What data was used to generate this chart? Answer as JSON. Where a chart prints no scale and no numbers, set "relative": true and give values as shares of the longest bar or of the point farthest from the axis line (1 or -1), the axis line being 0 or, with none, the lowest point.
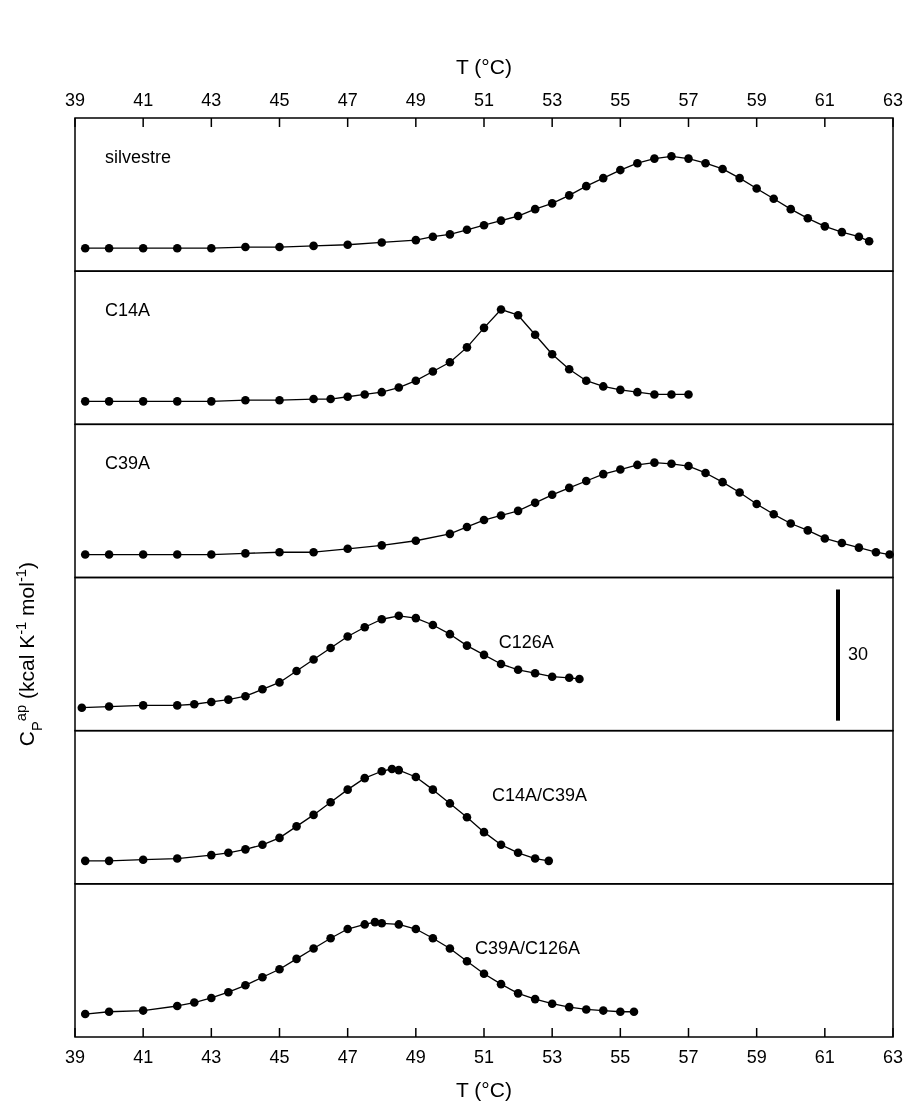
{
  "chart_data": [
    {
      "type": "line",
      "relative": true,
      "marker": "circle",
      "xlabel": "T (°C)",
      "xlim": [
        39,
        63
      ],
      "xticks": [
        39,
        41,
        43,
        45,
        47,
        49,
        51,
        53,
        55,
        57,
        59,
        61,
        63
      ],
      "series": [
        {
          "name": "silvestre",
          "color": "#000000",
          "x": [
            39.3,
            40,
            41,
            42,
            43,
            44,
            45,
            46,
            47,
            48,
            49,
            49.5,
            50,
            50.5,
            51,
            51.5,
            52,
            52.5,
            53,
            53.5,
            54,
            54.5,
            55,
            55.5,
            56,
            56.5,
            57,
            57.5,
            58,
            58.5,
            59,
            59.5,
            60,
            60.5,
            61,
            61.5,
            62,
            62.3
          ],
          "values": [
            0.2,
            0.2,
            0.2,
            0.2,
            0.2,
            0.21,
            0.21,
            0.22,
            0.23,
            0.25,
            0.27,
            0.3,
            0.32,
            0.36,
            0.4,
            0.44,
            0.48,
            0.54,
            0.59,
            0.66,
            0.74,
            0.81,
            0.88,
            0.94,
            0.98,
            1,
            0.98,
            0.94,
            0.89,
            0.81,
            0.72,
            0.63,
            0.54,
            0.46,
            0.39,
            0.34,
            0.3,
            0.26
          ]
        }
      ]
    },
    {
      "type": "line",
      "relative": true,
      "marker": "circle",
      "xlim": [
        39,
        63
      ],
      "series": [
        {
          "name": "C14A",
          "color": "#000000",
          "x": [
            39.3,
            40,
            41,
            42,
            43,
            44,
            45,
            46,
            46.5,
            47,
            47.5,
            48,
            48.5,
            49,
            49.5,
            50,
            50.5,
            51,
            51.5,
            52,
            52.5,
            53,
            53.5,
            54,
            54.5,
            55,
            55.5,
            56,
            56.5,
            57
          ],
          "values": [
            0.2,
            0.2,
            0.2,
            0.2,
            0.2,
            0.21,
            0.21,
            0.22,
            0.22,
            0.24,
            0.26,
            0.28,
            0.32,
            0.38,
            0.46,
            0.54,
            0.67,
            0.84,
            1,
            0.95,
            0.78,
            0.61,
            0.48,
            0.38,
            0.33,
            0.3,
            0.28,
            0.26,
            0.26,
            0.26
          ]
        }
      ]
    },
    {
      "type": "line",
      "relative": true,
      "marker": "circle",
      "xlim": [
        39,
        63
      ],
      "series": [
        {
          "name": "C39A",
          "color": "#000000",
          "x": [
            39.3,
            40,
            41,
            42,
            43,
            44,
            45,
            46,
            47,
            48,
            49,
            50,
            50.5,
            51,
            51.5,
            52,
            52.5,
            53,
            53.5,
            54,
            54.5,
            55,
            55.5,
            56,
            56.5,
            57,
            57.5,
            58,
            58.5,
            59,
            59.5,
            60,
            60.5,
            61,
            61.5,
            62,
            62.5,
            62.9
          ],
          "values": [
            0.2,
            0.2,
            0.2,
            0.2,
            0.2,
            0.21,
            0.22,
            0.22,
            0.25,
            0.28,
            0.32,
            0.38,
            0.44,
            0.5,
            0.54,
            0.58,
            0.65,
            0.72,
            0.78,
            0.84,
            0.9,
            0.94,
            0.98,
            1,
            0.99,
            0.97,
            0.91,
            0.83,
            0.74,
            0.64,
            0.55,
            0.47,
            0.41,
            0.34,
            0.3,
            0.26,
            0.22,
            0.2
          ]
        }
      ]
    },
    {
      "type": "line",
      "relative": true,
      "marker": "circle",
      "xlim": [
        39,
        63
      ],
      "ylabel": "C$_{P}$$^{ap}$ (kcal K$^{-1}$ mol$^{-1}$)",
      "annotations": [
        "30"
      ],
      "series": [
        {
          "name": "C126A",
          "color": "#000000",
          "x": [
            39.2,
            40,
            41,
            42,
            42.5,
            43,
            43.5,
            44,
            44.5,
            45,
            45.5,
            46,
            46.5,
            47,
            47.5,
            48,
            48.5,
            49,
            49.5,
            50,
            50.5,
            51,
            51.5,
            52,
            52.5,
            53,
            53.5,
            53.8
          ],
          "values": [
            0.2,
            0.21,
            0.22,
            0.22,
            0.23,
            0.25,
            0.27,
            0.3,
            0.36,
            0.42,
            0.52,
            0.62,
            0.72,
            0.82,
            0.9,
            0.97,
            1,
            0.98,
            0.92,
            0.84,
            0.74,
            0.66,
            0.58,
            0.53,
            0.5,
            0.47,
            0.46,
            0.45
          ]
        }
      ]
    },
    {
      "type": "line",
      "relative": true,
      "marker": "circle",
      "xlim": [
        39,
        63
      ],
      "series": [
        {
          "name": "C14A/C39A",
          "color": "#000000",
          "x": [
            39.3,
            40,
            41,
            42,
            43,
            43.5,
            44,
            44.5,
            45,
            45.5,
            46,
            46.5,
            47,
            47.5,
            48,
            48.3,
            48.5,
            49,
            49.5,
            50,
            50.5,
            51,
            51.5,
            52,
            52.5,
            52.9
          ],
          "values": [
            0.2,
            0.2,
            0.21,
            0.22,
            0.25,
            0.27,
            0.3,
            0.34,
            0.4,
            0.5,
            0.6,
            0.71,
            0.82,
            0.92,
            0.98,
            1,
            0.99,
            0.93,
            0.82,
            0.7,
            0.58,
            0.45,
            0.34,
            0.27,
            0.22,
            0.2
          ]
        }
      ]
    },
    {
      "type": "line",
      "relative": true,
      "marker": "circle",
      "xlabel": "T (°C)",
      "xlim": [
        39,
        63
      ],
      "xticks": [
        39,
        41,
        43,
        45,
        47,
        49,
        51,
        53,
        55,
        57,
        59,
        61,
        63
      ],
      "series": [
        {
          "name": "C39A/C126A",
          "color": "#000000",
          "x": [
            39.3,
            40,
            41,
            42,
            42.5,
            43,
            43.5,
            44,
            44.5,
            45,
            45.5,
            46,
            46.5,
            47,
            47.5,
            47.8,
            48,
            48.5,
            49,
            49.5,
            50,
            50.5,
            51,
            51.5,
            52,
            52.5,
            53,
            53.5,
            54,
            54.5,
            55,
            55.4
          ],
          "values": [
            0.2,
            0.22,
            0.23,
            0.27,
            0.3,
            0.34,
            0.39,
            0.45,
            0.52,
            0.59,
            0.68,
            0.77,
            0.86,
            0.94,
            0.98,
            1,
            0.99,
            0.98,
            0.94,
            0.86,
            0.77,
            0.66,
            0.55,
            0.46,
            0.38,
            0.33,
            0.29,
            0.26,
            0.24,
            0.23,
            0.22,
            0.22
          ]
        }
      ]
    }
  ]
}
